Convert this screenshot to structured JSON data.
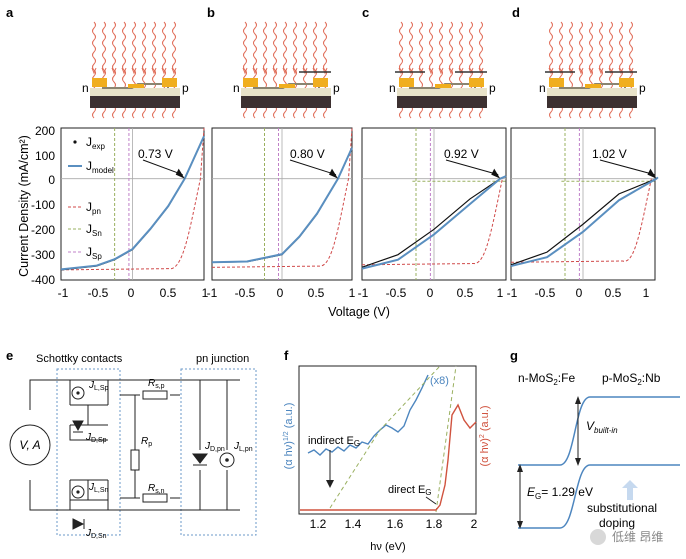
{
  "panel_labels": [
    "a",
    "b",
    "c",
    "d",
    "e",
    "f",
    "g"
  ],
  "device": {
    "n_label": "n",
    "p_label": "p"
  },
  "jv": {
    "xlabel": "Voltage (V)",
    "ylabel": "Current Density (mA/cm²)",
    "legend": [
      {
        "main": "J",
        "sub": "exp",
        "color": "#111111"
      },
      {
        "main": "J",
        "sub": "model",
        "color": "#5a8fc0"
      },
      {
        "main": "J",
        "sub": "pn",
        "color": "#d04a4a"
      },
      {
        "main": "J",
        "sub": "Sn",
        "color": "#9ab060"
      },
      {
        "main": "J",
        "sub": "Sp",
        "color": "#c080c8"
      }
    ],
    "annotations": [
      "0.73 V",
      "0.80 V",
      "0.92 V",
      "1.02 V"
    ],
    "yticks": [
      "200",
      "100",
      "0",
      "-100",
      "-200",
      "-300",
      "-400"
    ],
    "xticks": [
      [
        "-1",
        "-0.5",
        "0",
        "0.5",
        "1"
      ],
      [
        "-0.5",
        "0",
        "0.5",
        "1"
      ],
      [
        "-0.5",
        "0",
        "0.5",
        "1"
      ],
      [
        "-0.5",
        "0",
        "0.5",
        "1"
      ]
    ]
  },
  "chart_data": [
    {
      "type": "line",
      "panel": "a",
      "xlabel": "Voltage (V)",
      "ylabel": "Current Density (mA/cm²)",
      "xlim": [
        -1,
        1
      ],
      "ylim": [
        -400,
        200
      ],
      "annotation": "0.73 V",
      "series": [
        {
          "name": "J_exp",
          "x": [
            -1,
            -0.5,
            -0.25,
            0,
            0.25,
            0.5,
            0.73,
            1
          ],
          "y": [
            -360,
            -345,
            -320,
            -280,
            -200,
            -110,
            0,
            165
          ]
        },
        {
          "name": "J_model",
          "x": [
            -1,
            -0.5,
            -0.25,
            0,
            0.25,
            0.5,
            0.73,
            1
          ],
          "y": [
            -358,
            -343,
            -318,
            -278,
            -198,
            -108,
            0,
            168
          ]
        }
      ]
    },
    {
      "type": "line",
      "panel": "b",
      "xlabel": "Voltage (V)",
      "ylim": [
        -400,
        200
      ],
      "xlim": [
        -1,
        1
      ],
      "annotation": "0.80 V",
      "series": [
        {
          "name": "J_exp",
          "x": [
            -1,
            -0.5,
            0,
            0.25,
            0.5,
            0.8,
            1
          ],
          "y": [
            -330,
            -328,
            -300,
            -230,
            -140,
            0,
            120
          ]
        },
        {
          "name": "J_model",
          "x": [
            -1,
            -0.5,
            0,
            0.25,
            0.5,
            0.8,
            1
          ],
          "y": [
            -330,
            -327,
            -298,
            -228,
            -138,
            0,
            122
          ]
        }
      ]
    },
    {
      "type": "line",
      "panel": "c",
      "xlabel": "Voltage (V)",
      "ylim": [
        -400,
        200
      ],
      "xlim": [
        -1,
        1
      ],
      "annotation": "0.92 V",
      "series": [
        {
          "name": "J_exp",
          "x": [
            -1,
            -0.5,
            0,
            0.5,
            0.92,
            1
          ],
          "y": [
            -350,
            -300,
            -200,
            -80,
            0,
            10
          ]
        },
        {
          "name": "J_model",
          "x": [
            -1,
            -0.5,
            0,
            0.5,
            0.92,
            1
          ],
          "y": [
            -355,
            -320,
            -220,
            -100,
            0,
            10
          ]
        }
      ]
    },
    {
      "type": "line",
      "panel": "d",
      "xlabel": "Voltage (V)",
      "ylim": [
        -400,
        200
      ],
      "xlim": [
        -1,
        1
      ],
      "annotation": "1.02 V",
      "series": [
        {
          "name": "J_exp",
          "x": [
            -1,
            -0.5,
            0,
            0.5,
            1.02,
            1.05
          ],
          "y": [
            -340,
            -290,
            -180,
            -60,
            0,
            5
          ]
        },
        {
          "name": "J_model",
          "x": [
            -1,
            -0.5,
            0,
            0.5,
            1.02,
            1.05
          ],
          "y": [
            -345,
            -310,
            -210,
            -85,
            0,
            5
          ]
        }
      ]
    },
    {
      "type": "line",
      "panel": "f",
      "xlabel": "hν (eV)",
      "ylabel_left": "(α hν)^1/2 (a.u.)",
      "ylabel_right": "(α hν)^2 (a.u.)",
      "xlim": [
        1.15,
        2.0
      ],
      "annotations": [
        "indirect E_G",
        "direct E_G",
        "(x8)"
      ]
    }
  ],
  "circuit": {
    "schottky_label": "Schottky contacts",
    "pn_label": "pn junction",
    "source": "V, A",
    "labels": [
      {
        "main": "J",
        "sub": "L,Sp"
      },
      {
        "main": "J",
        "sub": "D,Sp"
      },
      {
        "main": "J",
        "sub": "L,Sn"
      },
      {
        "main": "J",
        "sub": "D,Sn"
      },
      {
        "main": "R",
        "sub": "s,p"
      },
      {
        "main": "R",
        "sub": "p"
      },
      {
        "main": "R",
        "sub": "s,n"
      },
      {
        "main": "J",
        "sub": "D,pn"
      },
      {
        "main": "J",
        "sub": "L,pn"
      }
    ]
  },
  "absorption": {
    "xlabel": "hν (eV)",
    "xticks": [
      "1.2",
      "1.4",
      "1.6",
      "1.8",
      "2"
    ],
    "yleft": "(α hν)",
    "yleft_sup": "1/2",
    "yleft_unit": " (a.u.)",
    "yright": "(α hν)",
    "yright_sup": "2",
    "yright_unit": " (a.u.)",
    "x8": "(x8)",
    "indirect": "indirect E",
    "direct": "direct E",
    "sub": "G"
  },
  "band": {
    "n_label": "n-MoS",
    "n_fe": ":Fe",
    "p_label": "p-MoS",
    "p_nb": ":Nb",
    "v": "V",
    "v_sub": "built-in",
    "eg": "E",
    "eg_sub": "G",
    "eg_val": "= 1.29 eV",
    "doping1": "substitutional",
    "doping2": "doping",
    "watermark": "低维 昂维"
  }
}
